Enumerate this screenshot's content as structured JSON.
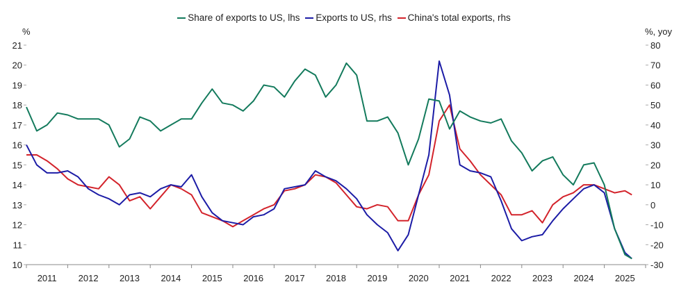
{
  "chart_data": {
    "type": "line",
    "title": "",
    "legend_position": "top",
    "y_left": {
      "label": "%",
      "range": [
        10,
        21
      ],
      "ticks": [
        10,
        11,
        12,
        13,
        14,
        15,
        16,
        17,
        18,
        19,
        20,
        21
      ]
    },
    "y_right": {
      "label": "%, yoy",
      "range": [
        -30,
        80
      ],
      "ticks": [
        -30,
        -20,
        -10,
        0,
        10,
        20,
        30,
        40,
        50,
        60,
        70,
        80
      ]
    },
    "x_tick_labels": [
      "2011",
      "2012",
      "2013",
      "2014",
      "2015",
      "2016",
      "2017",
      "2018",
      "2019",
      "2020",
      "2021",
      "2022",
      "2023",
      "2024",
      "2025"
    ],
    "grid": false,
    "x": [
      "2011-01",
      "2011-04",
      "2011-07",
      "2011-10",
      "2012-01",
      "2012-04",
      "2012-07",
      "2012-10",
      "2013-01",
      "2013-04",
      "2013-07",
      "2013-10",
      "2014-01",
      "2014-04",
      "2014-07",
      "2014-10",
      "2015-01",
      "2015-04",
      "2015-07",
      "2015-10",
      "2016-01",
      "2016-04",
      "2016-07",
      "2016-10",
      "2017-01",
      "2017-04",
      "2017-07",
      "2017-10",
      "2018-01",
      "2018-04",
      "2018-07",
      "2018-10",
      "2019-01",
      "2019-04",
      "2019-07",
      "2019-10",
      "2020-01",
      "2020-04",
      "2020-07",
      "2020-10",
      "2021-01",
      "2021-04",
      "2021-07",
      "2021-10",
      "2022-01",
      "2022-04",
      "2022-07",
      "2022-10",
      "2023-01",
      "2023-04",
      "2023-07",
      "2023-10",
      "2024-01",
      "2024-04",
      "2024-07",
      "2024-10",
      "2025-01",
      "2025-04",
      "2025-07",
      "2025-09"
    ],
    "series": [
      {
        "name": "Share of exports to US, lhs",
        "axis": "left",
        "color": "#137a5c",
        "values": [
          17.9,
          16.7,
          17.0,
          17.6,
          17.5,
          17.3,
          17.3,
          17.3,
          17.0,
          15.9,
          16.3,
          17.4,
          17.2,
          16.7,
          17.0,
          17.3,
          17.3,
          18.1,
          18.8,
          18.1,
          18.0,
          17.7,
          18.2,
          19.0,
          18.9,
          18.4,
          19.2,
          19.8,
          19.5,
          18.4,
          19.0,
          20.1,
          19.5,
          17.2,
          17.2,
          17.4,
          16.6,
          15.0,
          16.3,
          18.3,
          18.2,
          16.8,
          17.7,
          17.4,
          17.2,
          17.1,
          17.3,
          16.2,
          15.6,
          14.7,
          15.2,
          15.4,
          14.5,
          14.0,
          15.0,
          15.1,
          14.0,
          11.8,
          10.5,
          10.3
        ]
      },
      {
        "name": "Exports to US, rhs",
        "axis": "right",
        "color": "#1c1ca6",
        "values": [
          30,
          20,
          16,
          16,
          17,
          14,
          8,
          5,
          3,
          0,
          5,
          6,
          4,
          8,
          10,
          9,
          15,
          4,
          -4,
          -8,
          -9,
          -10,
          -6,
          -5,
          -2,
          8,
          9,
          10,
          17,
          14,
          12,
          8,
          3,
          -5,
          -10,
          -14,
          -23,
          -15,
          5,
          25,
          72,
          55,
          20,
          17,
          16,
          14,
          2,
          -12,
          -18,
          -16,
          -15,
          -8,
          -2,
          3,
          8,
          10,
          6,
          -12,
          -24,
          -27
        ]
      },
      {
        "name": "China's total exports, rhs",
        "axis": "right",
        "color": "#d3232b",
        "values": [
          25,
          25,
          22,
          18,
          13,
          10,
          9,
          8,
          14,
          10,
          2,
          4,
          -2,
          4,
          10,
          8,
          5,
          -4,
          -6,
          -8,
          -11,
          -8,
          -5,
          -2,
          0,
          7,
          8,
          10,
          15,
          14,
          11,
          5,
          -1,
          -2,
          0,
          -1,
          -8,
          -8,
          5,
          15,
          42,
          50,
          28,
          22,
          15,
          10,
          5,
          -5,
          -5,
          -3,
          -9,
          0,
          4,
          6,
          10,
          10,
          8,
          6,
          7,
          5
        ]
      }
    ]
  }
}
